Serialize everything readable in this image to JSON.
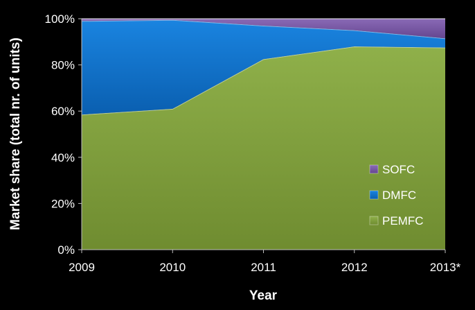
{
  "chart_data": {
    "type": "area",
    "stacked": true,
    "normalized": true,
    "title": "",
    "xlabel": "Year",
    "ylabel": "Market share (total nr. of units)",
    "categories": [
      "2009",
      "2010",
      "2011",
      "2012",
      "2013*"
    ],
    "ylim": [
      0,
      100
    ],
    "yticks": [
      "0%",
      "20%",
      "40%",
      "60%",
      "80%",
      "100%"
    ],
    "grid": false,
    "legend_position": "bottom-right, inside plot",
    "series": [
      {
        "name": "PEMFC",
        "color": "#7f9d3c",
        "values": [
          58.5,
          61,
          82.5,
          88,
          87.5
        ]
      },
      {
        "name": "DMFC",
        "color": "#0b70c9",
        "values": [
          40.5,
          38.5,
          14.5,
          7,
          4
        ]
      },
      {
        "name": "SOFC",
        "color": "#7b5aa6",
        "values": [
          1,
          0.5,
          3,
          5,
          8.5
        ]
      }
    ],
    "legend_order": [
      "SOFC",
      "DMFC",
      "PEMFC"
    ]
  }
}
